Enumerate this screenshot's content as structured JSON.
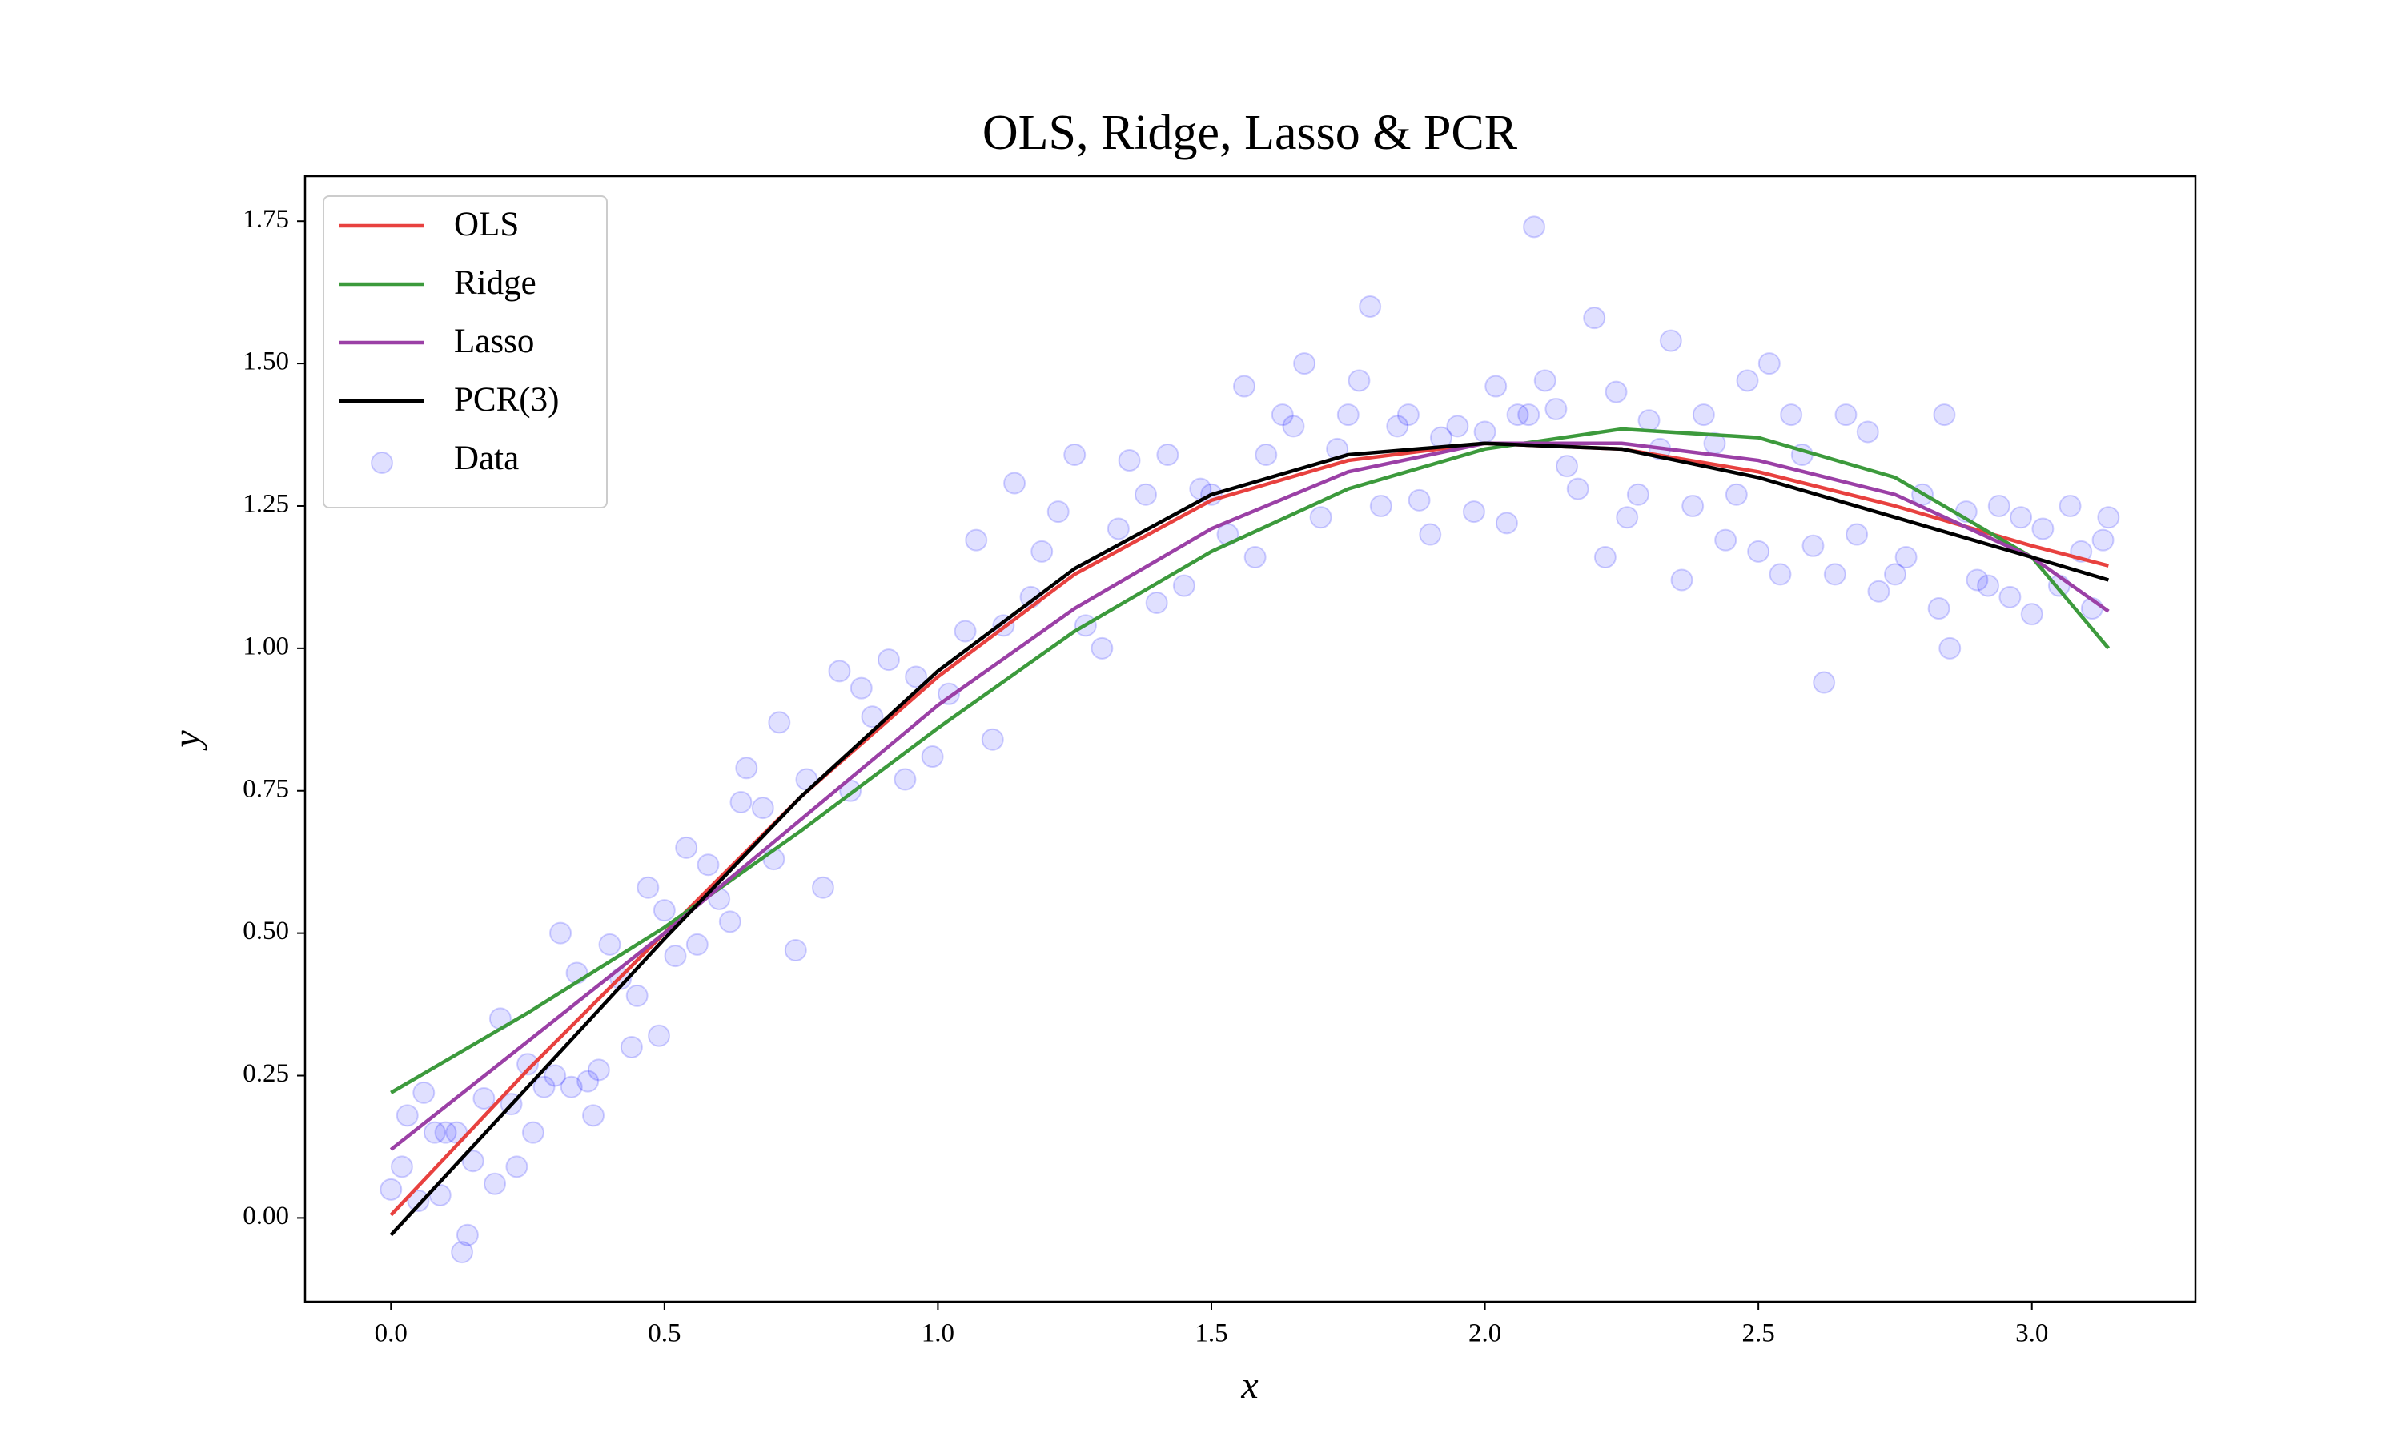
{
  "chart_data": {
    "type": "line",
    "title": "OLS, Ridge, Lasso & PCR",
    "xlabel": "x",
    "ylabel": "y",
    "x": [
      0,
      0.25,
      0.5,
      0.75,
      1.0,
      1.25,
      1.5,
      1.75,
      2.0,
      2.25,
      2.5,
      2.75,
      3.0,
      3.14
    ],
    "series": [
      {
        "name": "OLS",
        "type": "line",
        "color": "#e8413f",
        "values": [
          0.005,
          0.26,
          0.5,
          0.74,
          0.95,
          1.13,
          1.26,
          1.33,
          1.36,
          1.35,
          1.31,
          1.25,
          1.18,
          1.145
        ]
      },
      {
        "name": "Ridge",
        "type": "line",
        "color": "#3c9a3c",
        "values": [
          0.22,
          0.36,
          0.51,
          0.68,
          0.86,
          1.03,
          1.17,
          1.28,
          1.35,
          1.385,
          1.37,
          1.3,
          1.16,
          1.0
        ]
      },
      {
        "name": "Lasso",
        "type": "line",
        "color": "#9b40a6",
        "values": [
          0.12,
          0.31,
          0.5,
          0.7,
          0.9,
          1.07,
          1.21,
          1.31,
          1.36,
          1.36,
          1.33,
          1.27,
          1.16,
          1.065
        ]
      },
      {
        "name": "PCR(3)",
        "type": "line",
        "color": "#000000",
        "values": [
          -0.03,
          0.23,
          0.49,
          0.74,
          0.96,
          1.14,
          1.27,
          1.34,
          1.36,
          1.35,
          1.3,
          1.23,
          1.16,
          1.12
        ]
      },
      {
        "name": "Data",
        "type": "scatter",
        "color": "#0000ff",
        "x": [
          0.0,
          0.02,
          0.03,
          0.05,
          0.06,
          0.08,
          0.09,
          0.1,
          0.12,
          0.13,
          0.14,
          0.15,
          0.17,
          0.19,
          0.2,
          0.22,
          0.23,
          0.25,
          0.26,
          0.28,
          0.3,
          0.31,
          0.33,
          0.34,
          0.36,
          0.37,
          0.38,
          0.4,
          0.42,
          0.44,
          0.45,
          0.47,
          0.49,
          0.5,
          0.52,
          0.54,
          0.56,
          0.58,
          0.6,
          0.62,
          0.64,
          0.65,
          0.68,
          0.7,
          0.71,
          0.74,
          0.76,
          0.79,
          0.82,
          0.84,
          0.86,
          0.88,
          0.91,
          0.94,
          0.96,
          0.99,
          1.02,
          1.05,
          1.07,
          1.1,
          1.12,
          1.14,
          1.17,
          1.19,
          1.22,
          1.25,
          1.27,
          1.3,
          1.33,
          1.35,
          1.38,
          1.4,
          1.42,
          1.45,
          1.48,
          1.5,
          1.53,
          1.56,
          1.58,
          1.6,
          1.63,
          1.65,
          1.67,
          1.7,
          1.73,
          1.75,
          1.77,
          1.79,
          1.81,
          1.84,
          1.86,
          1.88,
          1.9,
          1.92,
          1.95,
          1.98,
          2.0,
          2.02,
          2.04,
          2.06,
          2.08,
          2.09,
          2.11,
          2.13,
          2.15,
          2.17,
          2.2,
          2.22,
          2.24,
          2.26,
          2.28,
          2.3,
          2.32,
          2.34,
          2.36,
          2.38,
          2.4,
          2.42,
          2.44,
          2.46,
          2.48,
          2.5,
          2.52,
          2.54,
          2.56,
          2.58,
          2.6,
          2.62,
          2.64,
          2.66,
          2.68,
          2.7,
          2.72,
          2.75,
          2.77,
          2.8,
          2.83,
          2.84,
          2.85,
          2.88,
          2.9,
          2.92,
          2.94,
          2.96,
          2.98,
          3.0,
          3.02,
          3.05,
          3.07,
          3.09,
          3.11,
          3.13,
          3.14
        ],
        "values": [
          0.05,
          0.09,
          0.18,
          0.03,
          0.22,
          0.15,
          0.04,
          0.15,
          0.15,
          -0.06,
          -0.03,
          0.1,
          0.21,
          0.06,
          0.35,
          0.2,
          0.09,
          0.27,
          0.15,
          0.23,
          0.25,
          0.5,
          0.23,
          0.43,
          0.24,
          0.18,
          0.26,
          0.48,
          0.42,
          0.3,
          0.39,
          0.58,
          0.32,
          0.54,
          0.46,
          0.65,
          0.48,
          0.62,
          0.56,
          0.52,
          0.73,
          0.79,
          0.72,
          0.63,
          0.87,
          0.47,
          0.77,
          0.58,
          0.96,
          0.75,
          0.93,
          0.88,
          0.98,
          0.77,
          0.95,
          0.81,
          0.92,
          1.03,
          1.19,
          0.84,
          1.04,
          1.29,
          1.09,
          1.17,
          1.24,
          1.34,
          1.04,
          1.0,
          1.21,
          1.33,
          1.27,
          1.08,
          1.34,
          1.11,
          1.28,
          1.27,
          1.2,
          1.46,
          1.16,
          1.34,
          1.41,
          1.39,
          1.5,
          1.23,
          1.35,
          1.41,
          1.47,
          1.6,
          1.25,
          1.39,
          1.41,
          1.26,
          1.2,
          1.37,
          1.39,
          1.24,
          1.38,
          1.46,
          1.22,
          1.41,
          1.41,
          1.74,
          1.47,
          1.42,
          1.32,
          1.28,
          1.58,
          1.16,
          1.45,
          1.23,
          1.27,
          1.4,
          1.35,
          1.54,
          1.12,
          1.25,
          1.41,
          1.36,
          1.19,
          1.27,
          1.47,
          1.17,
          1.5,
          1.13,
          1.41,
          1.34,
          1.18,
          0.94,
          1.13,
          1.41,
          1.2,
          1.38,
          1.1,
          1.13,
          1.16,
          1.27,
          1.07,
          1.41,
          1.0,
          1.24,
          1.12,
          1.11,
          1.25,
          1.09,
          1.23,
          1.06,
          1.21,
          1.11,
          1.25,
          1.17,
          1.07,
          1.19,
          1.23
        ]
      }
    ],
    "xlim": [
      -0.157,
      3.299
    ],
    "ylim": [
      -0.147,
      1.829
    ],
    "xticks": [
      {
        "value": 0,
        "label": "0.0"
      },
      0.5,
      {
        "value": 1,
        "label": "1.0"
      },
      1.5,
      {
        "value": 2,
        "label": "2.0"
      },
      2.5,
      {
        "value": 3,
        "label": "3.0"
      }
    ],
    "yticks": [
      {
        "value": 0,
        "label": "0.00"
      },
      0.25,
      {
        "value": 0.5,
        "label": "0.50"
      },
      0.75,
      {
        "value": 1,
        "label": "1.00"
      },
      1.25,
      {
        "value": 1.5,
        "label": "1.50"
      },
      1.75
    ],
    "grid": false,
    "legend": "upper left"
  }
}
